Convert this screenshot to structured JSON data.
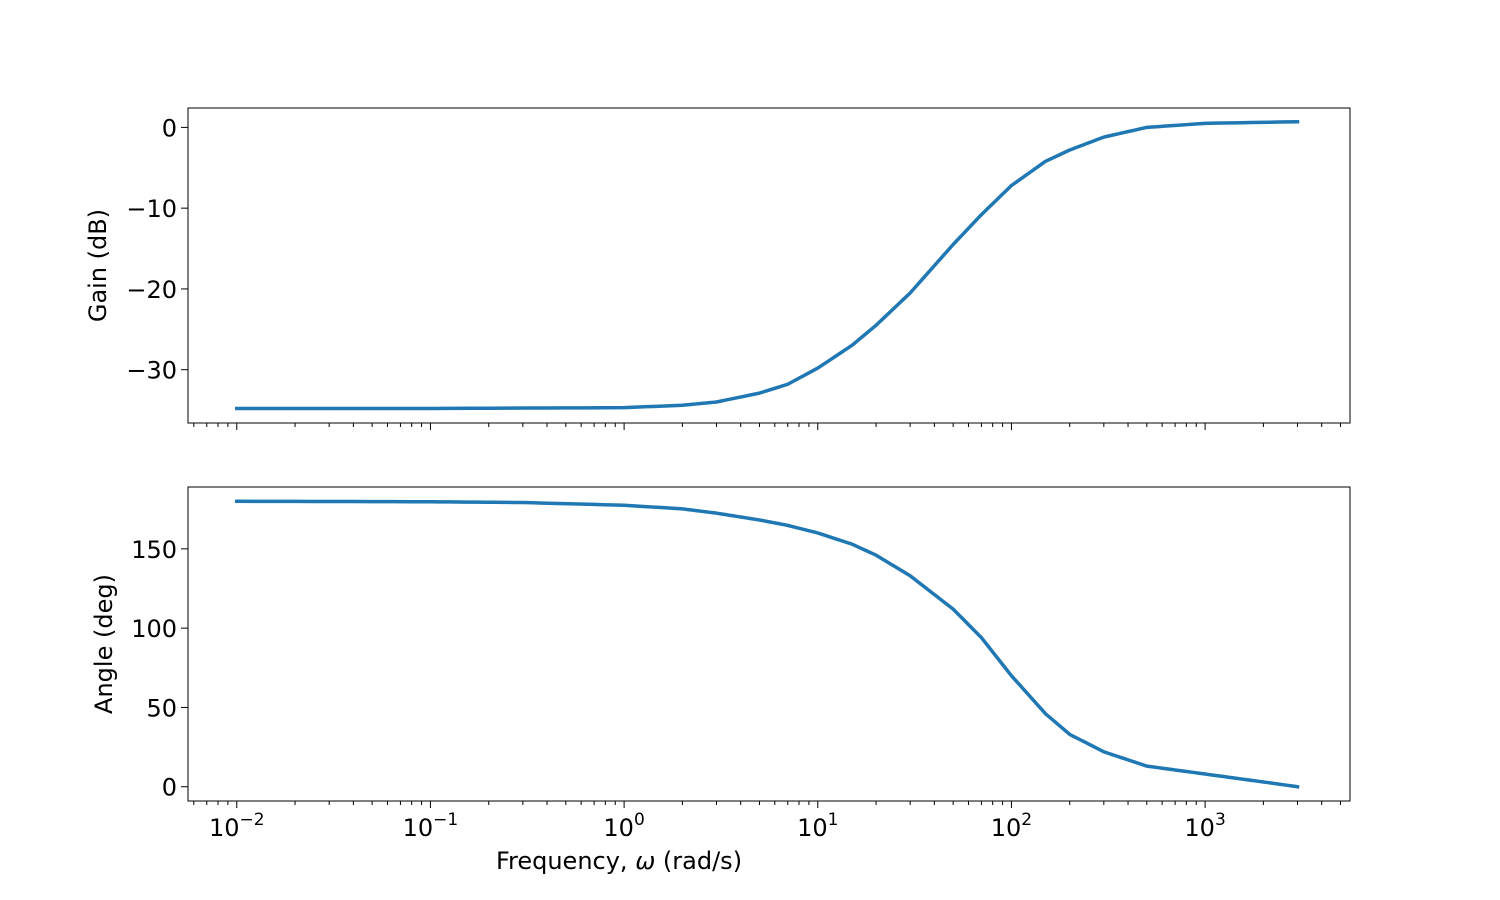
{
  "chart_data": [
    {
      "type": "line",
      "x_scale": "log",
      "xlim": [
        0.0056,
        5600
      ],
      "ylim": [
        -36.6,
        2.4
      ],
      "ylabel": "Gain (dB)",
      "yticks": [
        0,
        -10,
        -20,
        -30
      ],
      "ytick_labels": [
        "0",
        "−10",
        "−20",
        "−30"
      ],
      "grid": false,
      "series": [
        {
          "color": "#1f77b4",
          "x": [
            0.01,
            0.1,
            1,
            2,
            3,
            5,
            7,
            10,
            15,
            20,
            30,
            50,
            70,
            100,
            150,
            200,
            300,
            500,
            1000,
            3000
          ],
          "values": [
            -34.8,
            -34.8,
            -34.7,
            -34.4,
            -34.0,
            -32.9,
            -31.8,
            -29.8,
            -27.0,
            -24.5,
            -20.5,
            -14.5,
            -10.8,
            -7.2,
            -4.2,
            -2.8,
            -1.2,
            0.0,
            0.5,
            0.7
          ]
        }
      ]
    },
    {
      "type": "line",
      "x_scale": "log",
      "xlim": [
        0.0056,
        5600
      ],
      "ylim": [
        -9,
        189
      ],
      "xlabel_prefix": "Frequency, ",
      "xlabel_symbol": "ω",
      "xlabel_suffix": " (rad/s)",
      "ylabel": "Angle (deg)",
      "xticks": [
        0.01,
        0.1,
        1,
        10,
        100,
        1000
      ],
      "xtick_labels": [
        {
          "base": "10",
          "exp": "−2"
        },
        {
          "base": "10",
          "exp": "−1"
        },
        {
          "base": "10",
          "exp": "0"
        },
        {
          "base": "10",
          "exp": "1"
        },
        {
          "base": "10",
          "exp": "2"
        },
        {
          "base": "10",
          "exp": "3"
        }
      ],
      "yticks": [
        0,
        50,
        100,
        150
      ],
      "ytick_labels": [
        "0",
        "50",
        "100",
        "150"
      ],
      "grid": false,
      "series": [
        {
          "color": "#1f77b4",
          "x": [
            0.01,
            0.1,
            0.3,
            1,
            2,
            3,
            5,
            7,
            10,
            15,
            20,
            30,
            50,
            70,
            100,
            150,
            200,
            300,
            500,
            1000,
            2000,
            3000
          ],
          "values": [
            180,
            179.7,
            179.2,
            177.5,
            175.2,
            172.5,
            168.2,
            164.8,
            160,
            153,
            146,
            133,
            112,
            94,
            70,
            46,
            33,
            22,
            13,
            8,
            3,
            0
          ]
        }
      ]
    }
  ]
}
